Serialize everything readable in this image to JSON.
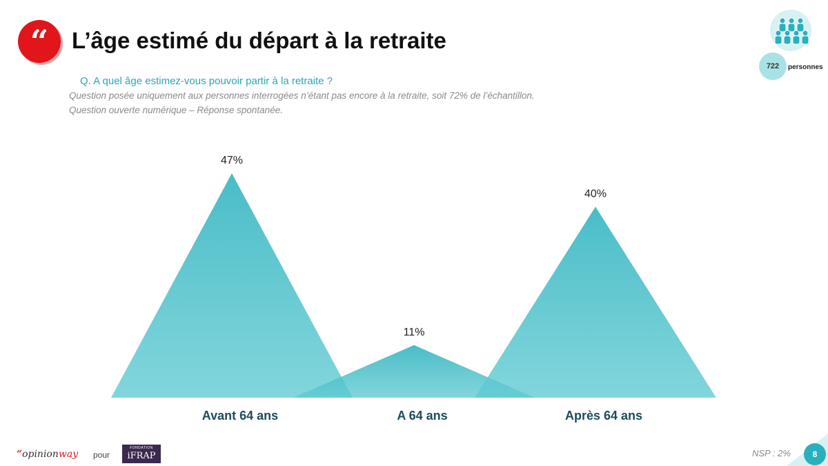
{
  "header": {
    "title": "L’âge estimé du départ à la retraite",
    "quote_glyph": "“",
    "question": "Q. A quel âge estimez-vous pouvoir partir à la retraite ?",
    "note_1": "Question posée uniquement aux personnes interrogées n’étant pas encore à la retraite, soit 72% de l’échantillon.",
    "note_2": "Question ouverte numérique – Réponse spontanée."
  },
  "sample": {
    "count": "722",
    "unit": "personnes"
  },
  "chart_data": {
    "type": "area",
    "categories": [
      "Avant 64 ans",
      "A 64 ans",
      "Après 64 ans"
    ],
    "values": [
      47,
      11,
      40
    ],
    "value_labels": [
      "47%",
      "11%",
      "40%"
    ],
    "color": "#3bb9c3"
  },
  "footer": {
    "brand_quote": "“",
    "brand_name": "opinion",
    "brand_suffix": "way",
    "pour": "pour",
    "partner_small": "FONDATION",
    "partner_name": "iFRAP",
    "nsp": "NSP : 2%",
    "page_number": "8"
  }
}
